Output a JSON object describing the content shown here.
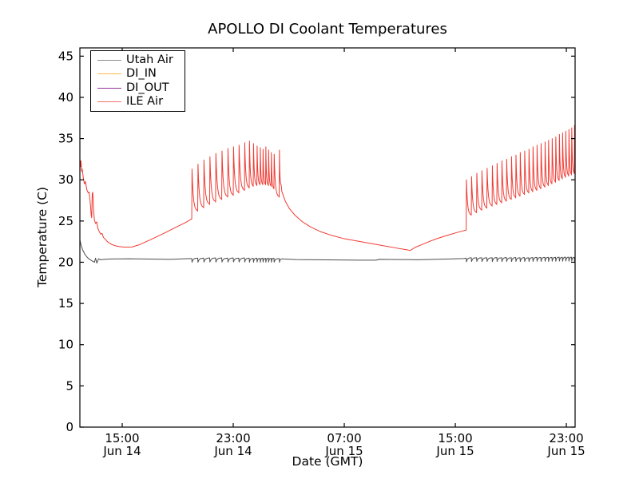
{
  "figure": {
    "background": "#ffffff",
    "frame_color": "#000000"
  },
  "chart_data": {
    "type": "line",
    "title": "APOLLO DI Coolant Temperatures",
    "xlabel": "Date (GMT)",
    "ylabel": "Temperature (C)",
    "x_unit": "hours since Jun 14 00:00 GMT",
    "xlim_hours": [
      11.95,
      47.63
    ],
    "ylim": [
      0,
      46
    ],
    "yticks": [
      0,
      5,
      10,
      15,
      20,
      25,
      30,
      35,
      40,
      45
    ],
    "xticks": [
      {
        "t": 15,
        "time": "15:00",
        "date": "Jun 14"
      },
      {
        "t": 23,
        "time": "23:00",
        "date": "Jun 14"
      },
      {
        "t": 31,
        "time": "07:00",
        "date": "Jun 15"
      },
      {
        "t": 39,
        "time": "15:00",
        "date": "Jun 15"
      },
      {
        "t": 47,
        "time": "23:00",
        "date": "Jun 15"
      }
    ],
    "grid": false,
    "legend_position": "upper left",
    "series": [
      {
        "name": "Utah Air",
        "color": "#4d4d4d",
        "legend_color": "#8c8c8c",
        "visible": true,
        "segments": [
          {
            "type": "poly",
            "points": [
              [
                11.95,
                22.7
              ],
              [
                12.05,
                22.0
              ],
              [
                12.15,
                21.5
              ],
              [
                12.3,
                21.0
              ],
              [
                12.45,
                20.65
              ],
              [
                12.6,
                20.4
              ],
              [
                12.75,
                20.25
              ],
              [
                12.88,
                20.1
              ],
              [
                13.0,
                20.0
              ],
              [
                13.08,
                20.5
              ],
              [
                13.17,
                19.9
              ],
              [
                13.3,
                20.42
              ],
              [
                13.45,
                20.3
              ],
              [
                13.7,
                20.35
              ],
              [
                14.2,
                20.4
              ],
              [
                15.5,
                20.42
              ],
              [
                17.0,
                20.38
              ],
              [
                18.5,
                20.35
              ],
              [
                19.5,
                20.42
              ],
              [
                19.95,
                20.45
              ]
            ]
          },
          {
            "type": "spikes",
            "end_dt": 0.25,
            "end_base": 20.42,
            "spikes": [
              [
                20.01,
                20.45,
                20.0
              ],
              [
                20.44,
                20.5,
                20.0
              ],
              [
                20.87,
                20.5,
                20.02
              ],
              [
                21.3,
                20.52,
                20.03
              ],
              [
                21.73,
                20.52,
                20.02
              ],
              [
                22.17,
                20.52,
                20.03
              ],
              [
                22.6,
                20.5,
                20.02
              ],
              [
                23.0,
                20.52,
                20.04
              ],
              [
                23.4,
                20.5,
                20.02
              ],
              [
                23.81,
                20.52,
                20.03
              ],
              [
                24.15,
                20.5,
                20.0
              ],
              [
                24.44,
                20.48,
                20.0
              ],
              [
                24.7,
                20.5,
                20.02
              ],
              [
                24.93,
                20.48,
                20.0
              ],
              [
                25.13,
                20.5,
                20.02
              ],
              [
                25.33,
                20.48,
                20.0
              ],
              [
                25.53,
                20.5,
                20.02
              ],
              [
                25.73,
                20.48,
                20.0
              ],
              [
                25.93,
                20.5,
                20.02
              ],
              [
                26.31,
                20.45,
                20.0
              ]
            ]
          },
          {
            "type": "poly",
            "points": [
              [
                26.6,
                20.4
              ],
              [
                27.5,
                20.33
              ],
              [
                29.0,
                20.3
              ],
              [
                30.5,
                20.28
              ],
              [
                32.0,
                20.25
              ],
              [
                33.3,
                20.25
              ],
              [
                33.5,
                20.35
              ],
              [
                35.0,
                20.33
              ],
              [
                36.3,
                20.3
              ],
              [
                37.5,
                20.35
              ],
              [
                38.6,
                20.4
              ],
              [
                39.6,
                20.45
              ],
              [
                39.76,
                20.5
              ]
            ]
          },
          {
            "type": "spikes",
            "end_dt": 0.1,
            "end_base": 20.6,
            "spikes": [
              [
                39.78,
                20.5,
                20.05
              ],
              [
                40.15,
                20.55,
                20.08
              ],
              [
                40.53,
                20.55,
                20.1
              ],
              [
                40.9,
                20.55,
                20.08
              ],
              [
                41.27,
                20.55,
                20.1
              ],
              [
                41.65,
                20.55,
                20.08
              ],
              [
                41.99,
                20.57,
                20.1
              ],
              [
                42.34,
                20.55,
                20.08
              ],
              [
                42.68,
                20.57,
                20.1
              ],
              [
                43.03,
                20.55,
                20.08
              ],
              [
                43.35,
                20.57,
                20.1
              ],
              [
                43.66,
                20.55,
                20.08
              ],
              [
                43.98,
                20.57,
                20.1
              ],
              [
                44.29,
                20.55,
                20.1
              ],
              [
                44.58,
                20.57,
                20.1
              ],
              [
                44.87,
                20.6,
                20.12
              ],
              [
                45.16,
                20.58,
                20.1
              ],
              [
                45.45,
                20.6,
                20.12
              ],
              [
                45.7,
                20.6,
                20.1
              ],
              [
                45.96,
                20.6,
                20.12
              ],
              [
                46.22,
                20.6,
                20.12
              ],
              [
                46.48,
                20.62,
                20.14
              ],
              [
                46.71,
                20.6,
                20.12
              ],
              [
                46.94,
                20.62,
                20.14
              ],
              [
                47.17,
                20.62,
                20.12
              ],
              [
                47.37,
                20.62,
                20.14
              ],
              [
                47.57,
                20.6,
                20.12
              ]
            ]
          }
        ]
      },
      {
        "name": "DI_IN",
        "color": "#fdb94e",
        "legend_color": "#fdb94e",
        "visible": false,
        "segments": []
      },
      {
        "name": "DI_OUT",
        "color": "#97359b",
        "legend_color": "#97359b",
        "visible": false,
        "segments": []
      },
      {
        "name": "ILE Air",
        "color": "#ef3b33",
        "legend_color": "#f4726c",
        "visible": true,
        "segments": [
          {
            "type": "poly",
            "points": [
              [
                11.95,
                32.6
              ],
              [
                12.0,
                31.6
              ],
              [
                12.03,
                32.3
              ],
              [
                12.08,
                31.0
              ],
              [
                12.12,
                31.3
              ],
              [
                12.2,
                30.2
              ],
              [
                12.28,
                29.5
              ],
              [
                12.35,
                29.8
              ],
              [
                12.45,
                28.8
              ],
              [
                12.55,
                28.4
              ],
              [
                12.62,
                28.5
              ],
              [
                12.7,
                27.2
              ],
              [
                12.76,
                25.8
              ],
              [
                12.8,
                25.4
              ],
              [
                12.84,
                28.3
              ],
              [
                12.88,
                28.5
              ],
              [
                12.94,
                26.2
              ],
              [
                13.0,
                25.1
              ],
              [
                13.08,
                24.7
              ],
              [
                13.16,
                24.9
              ],
              [
                13.25,
                24.1
              ],
              [
                13.35,
                23.7
              ],
              [
                13.45,
                23.4
              ],
              [
                13.55,
                23.5
              ],
              [
                13.65,
                23.0
              ],
              [
                13.78,
                22.8
              ],
              [
                13.9,
                22.55
              ],
              [
                14.05,
                22.35
              ],
              [
                14.25,
                22.15
              ],
              [
                14.5,
                22.0
              ],
              [
                14.8,
                21.9
              ],
              [
                15.2,
                21.82
              ],
              [
                15.7,
                21.85
              ],
              [
                16.2,
                22.1
              ],
              [
                17.0,
                22.7
              ],
              [
                18.0,
                23.5
              ],
              [
                19.0,
                24.35
              ],
              [
                19.6,
                24.85
              ],
              [
                19.99,
                25.25
              ]
            ]
          },
          {
            "type": "spikes",
            "end_dt": 0.15,
            "end_base": 29.3,
            "spikes": [
              [
                20.01,
                25.25,
                31.3
              ],
              [
                20.44,
                26.2,
                31.9
              ],
              [
                20.87,
                26.6,
                32.4
              ],
              [
                21.3,
                27.0,
                32.8
              ],
              [
                21.73,
                27.3,
                33.2
              ],
              [
                22.17,
                27.6,
                33.5
              ],
              [
                22.6,
                27.9,
                33.8
              ],
              [
                23.0,
                28.1,
                34.0
              ],
              [
                23.4,
                28.4,
                34.2
              ],
              [
                23.81,
                28.7,
                34.5
              ],
              [
                24.15,
                29.0,
                34.7
              ],
              [
                24.44,
                29.2,
                34.4
              ],
              [
                24.7,
                29.3,
                34.1
              ],
              [
                24.93,
                29.4,
                33.9
              ],
              [
                25.13,
                29.4,
                33.7
              ],
              [
                25.33,
                29.4,
                34.0
              ],
              [
                25.53,
                29.3,
                33.6
              ],
              [
                25.73,
                29.2,
                33.3
              ],
              [
                25.93,
                28.9,
                33.1
              ],
              [
                26.31,
                27.9,
                33.6
              ]
            ]
          },
          {
            "type": "poly",
            "points": [
              [
                26.5,
                28.6
              ],
              [
                26.75,
                27.4
              ],
              [
                27.05,
                26.5
              ],
              [
                27.45,
                25.7
              ],
              [
                27.95,
                24.95
              ],
              [
                28.55,
                24.3
              ],
              [
                29.3,
                23.7
              ],
              [
                30.1,
                23.25
              ],
              [
                31.0,
                22.85
              ],
              [
                32.0,
                22.55
              ],
              [
                33.0,
                22.25
              ],
              [
                34.0,
                21.95
              ],
              [
                35.0,
                21.65
              ],
              [
                35.55,
                21.5
              ],
              [
                35.75,
                21.42
              ],
              [
                36.1,
                21.8
              ],
              [
                36.6,
                22.15
              ],
              [
                37.1,
                22.5
              ],
              [
                37.6,
                22.82
              ],
              [
                38.1,
                23.1
              ],
              [
                38.6,
                23.35
              ],
              [
                39.1,
                23.6
              ],
              [
                39.5,
                23.78
              ],
              [
                39.76,
                23.9
              ]
            ]
          },
          {
            "type": "spikes",
            "end_dt": 0.2,
            "end_base": 30.8,
            "spikes": [
              [
                39.78,
                23.9,
                30.0
              ],
              [
                40.15,
                25.7,
                30.4
              ],
              [
                40.53,
                26.0,
                30.8
              ],
              [
                40.9,
                26.3,
                31.1
              ],
              [
                41.27,
                26.55,
                31.4
              ],
              [
                41.65,
                26.8,
                31.7
              ],
              [
                41.99,
                27.0,
                32.0
              ],
              [
                42.34,
                27.2,
                32.3
              ],
              [
                42.68,
                27.4,
                32.5
              ],
              [
                43.03,
                27.6,
                32.8
              ],
              [
                43.35,
                27.8,
                33.0
              ],
              [
                43.66,
                28.0,
                33.3
              ],
              [
                43.98,
                28.2,
                33.5
              ],
              [
                44.29,
                28.4,
                33.7
              ],
              [
                44.58,
                28.55,
                34.0
              ],
              [
                44.87,
                28.7,
                34.2
              ],
              [
                45.16,
                28.9,
                34.4
              ],
              [
                45.45,
                29.1,
                34.6
              ],
              [
                45.7,
                29.3,
                34.8
              ],
              [
                45.96,
                29.5,
                35.0
              ],
              [
                46.22,
                29.7,
                35.2
              ],
              [
                46.48,
                29.9,
                35.5
              ],
              [
                46.71,
                30.1,
                35.7
              ],
              [
                46.94,
                30.3,
                35.9
              ],
              [
                47.17,
                30.45,
                36.1
              ],
              [
                47.37,
                30.6,
                36.3
              ],
              [
                47.57,
                30.75,
                36.6
              ]
            ]
          }
        ]
      }
    ]
  }
}
